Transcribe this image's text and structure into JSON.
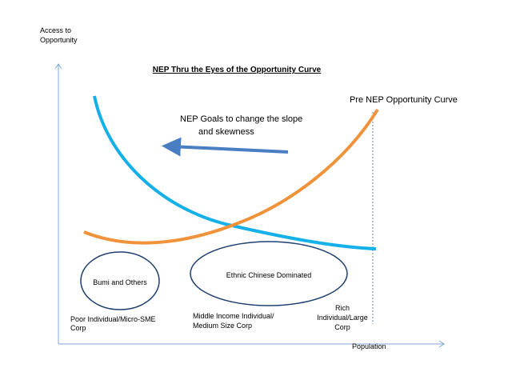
{
  "diagram": {
    "title": "NEP Thru the Eyes of the Opportunity Curve",
    "y_axis_label_line1": "Access to",
    "y_axis_label_line2": "Opportunity",
    "x_axis_label": "Population",
    "curve_label_pre_nep": "Pre NEP Opportunity Curve",
    "arrow_label_line1": "NEP Goals to change the slope",
    "arrow_label_line2": "and skewness",
    "ellipse_left_label": "Bumi and Others",
    "ellipse_right_label": "Ethnic Chinese Dominated",
    "group_poor_line1": "Poor Individual/Micro-SME",
    "group_poor_line2": "Corp",
    "group_middle_line1": "Middle Income Individual/",
    "group_middle_line2": "Medium Size Corp",
    "group_rich_line1": "Rich",
    "group_rich_line2": "Individual/Large",
    "group_rich_line3": "Corp"
  },
  "colors": {
    "axis": "#7fa8d8",
    "blue_curve": "#16b0e8",
    "orange_curve": "#f0923a",
    "arrow": "#4a7ec3",
    "ellipse": "#1f3f6f",
    "dashed_line": "#6c8bb0"
  }
}
